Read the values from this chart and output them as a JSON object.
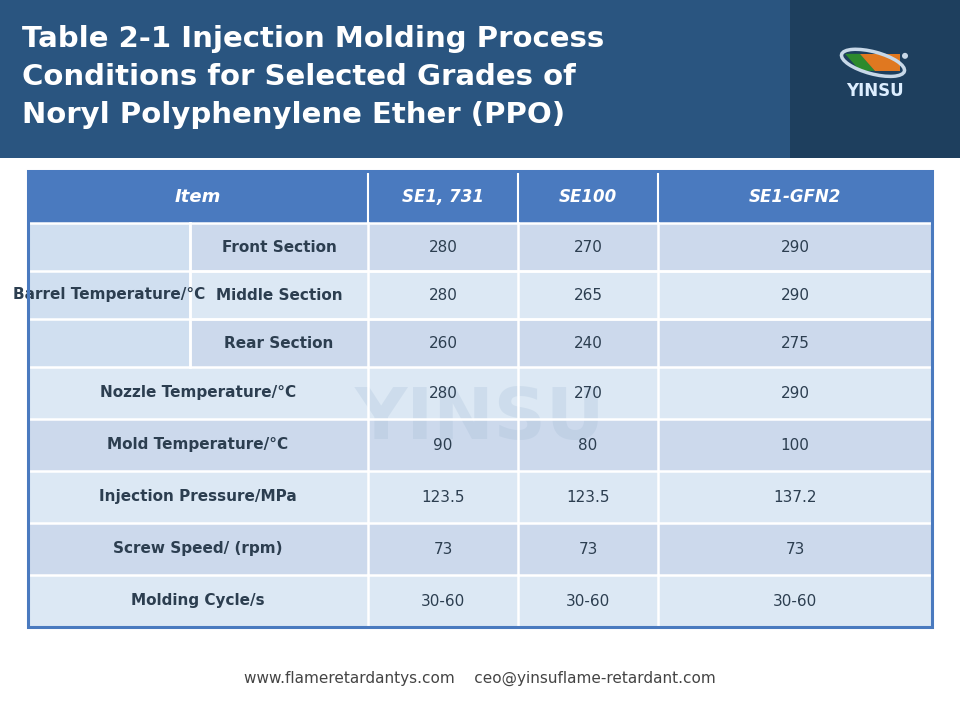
{
  "title_line1": "Table 2-1 Injection Molding Process",
  "title_line2": "Conditions for Selected Grades of",
  "title_line3": "Noryl Polyphenylene Ether (PPO)",
  "title_bg_color": "#2a5580",
  "title_bg_right_color": "#1e3f5e",
  "header_bg_color": "#4a7abf",
  "row_bg_light": "#dce6f1",
  "row_bg_lighter": "#eef2f8",
  "row_bg_white": "#f5f8fc",
  "table_border_color": "#4a7abf",
  "header_text_color": "#ffffff",
  "body_text_color": "#2c3e50",
  "footer_text": "www.flameretardantys.com    ceo@yinsuflame-retardant.com",
  "watermark_text": "YINSU",
  "col_headers": [
    "Item",
    "SE1, 731",
    "SE100",
    "SE1-GFN2"
  ],
  "rows": [
    {
      "label": "Barrel Temperature/°C",
      "sub": "Front Section",
      "vals": [
        "280",
        "270",
        "290"
      ],
      "is_barrel": true
    },
    {
      "label": "",
      "sub": "Middle Section",
      "vals": [
        "280",
        "265",
        "290"
      ],
      "is_barrel": true
    },
    {
      "label": "",
      "sub": "Rear Section",
      "vals": [
        "260",
        "240",
        "275"
      ],
      "is_barrel": true
    },
    {
      "label": "Nozzle Temperature/°C",
      "sub": "",
      "vals": [
        "280",
        "270",
        "290"
      ],
      "is_barrel": false
    },
    {
      "label": "Mold Temperature/°C",
      "sub": "",
      "vals": [
        "90",
        "80",
        "100"
      ],
      "is_barrel": false
    },
    {
      "label": "Injection Pressure/MPa",
      "sub": "",
      "vals": [
        "123.5",
        "123.5",
        "137.2"
      ],
      "is_barrel": false
    },
    {
      "label": "Screw Speed/ (rpm)",
      "sub": "",
      "vals": [
        "73",
        "73",
        "73"
      ],
      "is_barrel": false
    },
    {
      "label": "Molding Cycle/s",
      "sub": "",
      "vals": [
        "30-60",
        "30-60",
        "30-60"
      ],
      "is_barrel": false
    }
  ]
}
